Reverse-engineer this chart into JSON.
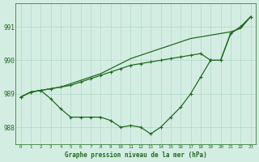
{
  "hours": [
    0,
    1,
    2,
    3,
    4,
    5,
    6,
    7,
    8,
    9,
    10,
    11,
    12,
    13,
    14,
    15,
    16,
    17,
    18,
    19,
    20,
    21,
    22,
    23
  ],
  "line_top": [
    988.9,
    989.05,
    989.1,
    989.15,
    989.2,
    989.3,
    989.4,
    989.5,
    989.6,
    989.75,
    989.9,
    990.05,
    990.15,
    990.25,
    990.35,
    990.45,
    990.55,
    990.65,
    990.7,
    990.75,
    990.8,
    990.85,
    990.95,
    991.3
  ],
  "line_mid": [
    988.9,
    989.05,
    989.1,
    989.15,
    989.2,
    989.25,
    989.35,
    989.45,
    989.55,
    989.65,
    989.75,
    989.85,
    989.9,
    989.95,
    990.0,
    990.05,
    990.1,
    990.15,
    990.2,
    990.0,
    990.0,
    990.8,
    991.0,
    991.3
  ],
  "line_bot": [
    988.9,
    989.05,
    989.1,
    988.85,
    988.55,
    988.3,
    988.3,
    988.3,
    988.3,
    988.2,
    988.0,
    988.05,
    988.0,
    987.8,
    988.0,
    988.3,
    988.6,
    989.0,
    989.5,
    990.0,
    990.0,
    990.8,
    991.0,
    991.3
  ],
  "line_color": "#1f6b1f",
  "bg_color": "#d4ede3",
  "grid_color": "#b0d8c8",
  "xlabel": "Graphe pression niveau de la mer (hPa)",
  "ylabel_ticks": [
    988,
    989,
    990,
    991
  ],
  "ylim": [
    987.5,
    991.7
  ],
  "xlim": [
    -0.5,
    23.5
  ]
}
